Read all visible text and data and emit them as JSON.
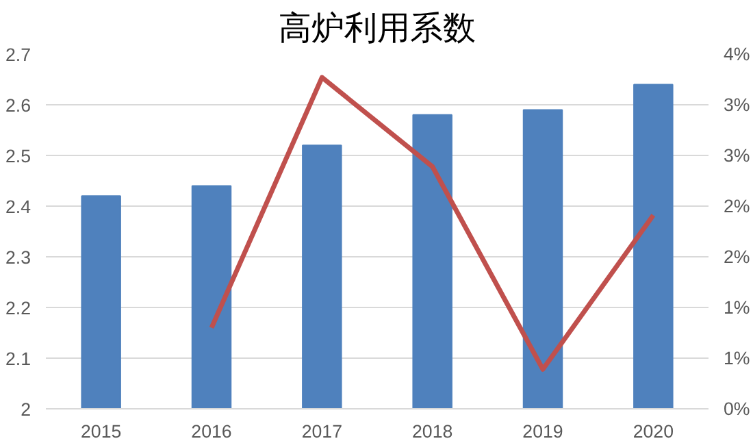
{
  "chart_data": {
    "type": "bar",
    "title": "高炉利用系数",
    "categories": [
      "2015",
      "2016",
      "2017",
      "2018",
      "2019",
      "2020"
    ],
    "series": [
      {
        "color": "#4f81bd",
        "values": [
          2.42,
          2.44,
          2.52,
          2.58,
          2.59,
          2.64
        ]
      },
      {
        "type": "line",
        "axis": "y2",
        "color": "#c0504d",
        "values": [
          null,
          0.8,
          3.27,
          2.39,
          0.39,
          1.91
        ]
      }
    ],
    "ylim": [
      2,
      2.7
    ],
    "yticks": [
      2,
      2.1,
      2.2,
      2.3,
      2.4,
      2.5,
      2.6,
      2.7
    ],
    "y2lim": [
      0,
      3.5
    ],
    "y2ticks": [
      {
        "value": 0,
        "label": "0%"
      },
      {
        "value": 0.5,
        "label": "1%"
      },
      {
        "value": 1,
        "label": "1%"
      },
      {
        "value": 1.5,
        "label": "2%"
      },
      {
        "value": 2,
        "label": "2%"
      },
      {
        "value": 2.5,
        "label": "3%"
      },
      {
        "value": 3,
        "label": "3%"
      },
      {
        "value": 3.5,
        "label": "4%"
      }
    ],
    "grid": "y",
    "marker": "none",
    "line_style": "solid"
  }
}
